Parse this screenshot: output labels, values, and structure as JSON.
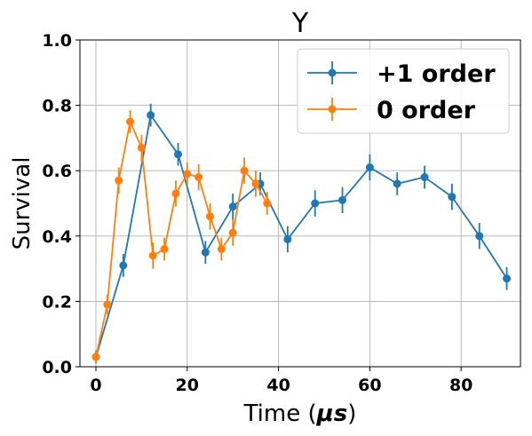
{
  "chart_data": {
    "type": "line",
    "title": "Y",
    "xlabel_prefix": "Time (",
    "xlabel_unit": "μs",
    "xlabel_suffix": ")",
    "ylabel": "Survival",
    "xlim": [
      -3.5,
      93
    ],
    "ylim": [
      0,
      1
    ],
    "xticks": [
      0,
      20,
      40,
      60,
      80
    ],
    "yticks": [
      0.0,
      0.2,
      0.4,
      0.6,
      0.8,
      1.0
    ],
    "xtick_labels": [
      "0",
      "20",
      "40",
      "60",
      "80"
    ],
    "ytick_labels": [
      "0.0",
      "0.2",
      "0.4",
      "0.6",
      "0.8",
      "1.0"
    ],
    "grid": true,
    "legend_position": "top-right",
    "series": [
      {
        "name": "+1 order",
        "color": "#1f77b4",
        "x": [
          0,
          6,
          12,
          18,
          24,
          30,
          36,
          42,
          48,
          54,
          60,
          66,
          72,
          78,
          84,
          90
        ],
        "y": [
          0.03,
          0.31,
          0.77,
          0.65,
          0.35,
          0.49,
          0.56,
          0.39,
          0.5,
          0.51,
          0.61,
          0.56,
          0.58,
          0.52,
          0.4,
          0.27
        ],
        "err": [
          0.02,
          0.035,
          0.035,
          0.035,
          0.035,
          0.04,
          0.035,
          0.04,
          0.04,
          0.04,
          0.04,
          0.035,
          0.035,
          0.04,
          0.04,
          0.035
        ]
      },
      {
        "name": "0 order",
        "color": "#ff7f0e",
        "x": [
          0,
          2.5,
          5,
          7.5,
          10,
          12.5,
          15,
          17.5,
          20,
          22.5,
          25,
          27.5,
          30,
          32.5,
          35,
          37.5
        ],
        "y": [
          0.03,
          0.19,
          0.57,
          0.75,
          0.67,
          0.34,
          0.36,
          0.53,
          0.59,
          0.58,
          0.46,
          0.36,
          0.41,
          0.6,
          0.56,
          0.5
        ],
        "err": [
          0.02,
          0.03,
          0.04,
          0.035,
          0.04,
          0.04,
          0.035,
          0.04,
          0.035,
          0.04,
          0.04,
          0.035,
          0.04,
          0.04,
          0.04,
          0.035
        ]
      }
    ]
  }
}
